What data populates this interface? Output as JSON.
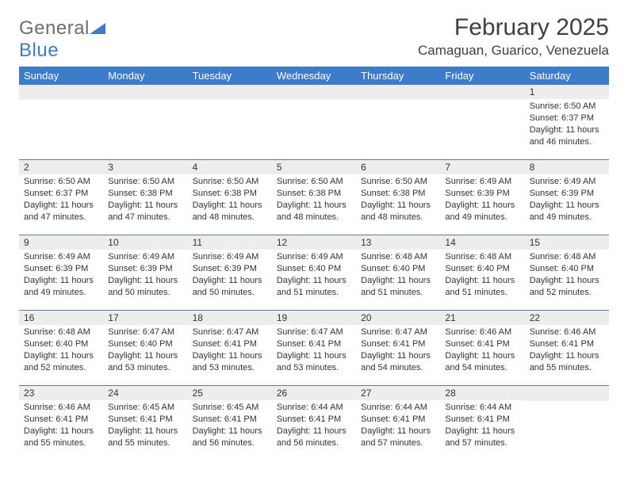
{
  "logo": {
    "word1": "General",
    "word2": "Blue"
  },
  "title": "February 2025",
  "location": "Camaguan, Guarico, Venezuela",
  "colors": {
    "header_bg": "#3d7cc9",
    "header_fg": "#ffffff",
    "daynum_bg": "#ededed",
    "rule": "#5a7da5",
    "text": "#333333",
    "logo_gray": "#6d6d6d",
    "logo_blue": "#3d7cc9"
  },
  "weekdays": [
    "Sunday",
    "Monday",
    "Tuesday",
    "Wednesday",
    "Thursday",
    "Friday",
    "Saturday"
  ],
  "weeks": [
    [
      null,
      null,
      null,
      null,
      null,
      null,
      {
        "d": "1",
        "sr": "6:50 AM",
        "ss": "6:37 PM",
        "dl": "11 hours and 46 minutes."
      }
    ],
    [
      {
        "d": "2",
        "sr": "6:50 AM",
        "ss": "6:37 PM",
        "dl": "11 hours and 47 minutes."
      },
      {
        "d": "3",
        "sr": "6:50 AM",
        "ss": "6:38 PM",
        "dl": "11 hours and 47 minutes."
      },
      {
        "d": "4",
        "sr": "6:50 AM",
        "ss": "6:38 PM",
        "dl": "11 hours and 48 minutes."
      },
      {
        "d": "5",
        "sr": "6:50 AM",
        "ss": "6:38 PM",
        "dl": "11 hours and 48 minutes."
      },
      {
        "d": "6",
        "sr": "6:50 AM",
        "ss": "6:38 PM",
        "dl": "11 hours and 48 minutes."
      },
      {
        "d": "7",
        "sr": "6:49 AM",
        "ss": "6:39 PM",
        "dl": "11 hours and 49 minutes."
      },
      {
        "d": "8",
        "sr": "6:49 AM",
        "ss": "6:39 PM",
        "dl": "11 hours and 49 minutes."
      }
    ],
    [
      {
        "d": "9",
        "sr": "6:49 AM",
        "ss": "6:39 PM",
        "dl": "11 hours and 49 minutes."
      },
      {
        "d": "10",
        "sr": "6:49 AM",
        "ss": "6:39 PM",
        "dl": "11 hours and 50 minutes."
      },
      {
        "d": "11",
        "sr": "6:49 AM",
        "ss": "6:39 PM",
        "dl": "11 hours and 50 minutes."
      },
      {
        "d": "12",
        "sr": "6:49 AM",
        "ss": "6:40 PM",
        "dl": "11 hours and 51 minutes."
      },
      {
        "d": "13",
        "sr": "6:48 AM",
        "ss": "6:40 PM",
        "dl": "11 hours and 51 minutes."
      },
      {
        "d": "14",
        "sr": "6:48 AM",
        "ss": "6:40 PM",
        "dl": "11 hours and 51 minutes."
      },
      {
        "d": "15",
        "sr": "6:48 AM",
        "ss": "6:40 PM",
        "dl": "11 hours and 52 minutes."
      }
    ],
    [
      {
        "d": "16",
        "sr": "6:48 AM",
        "ss": "6:40 PM",
        "dl": "11 hours and 52 minutes."
      },
      {
        "d": "17",
        "sr": "6:47 AM",
        "ss": "6:40 PM",
        "dl": "11 hours and 53 minutes."
      },
      {
        "d": "18",
        "sr": "6:47 AM",
        "ss": "6:41 PM",
        "dl": "11 hours and 53 minutes."
      },
      {
        "d": "19",
        "sr": "6:47 AM",
        "ss": "6:41 PM",
        "dl": "11 hours and 53 minutes."
      },
      {
        "d": "20",
        "sr": "6:47 AM",
        "ss": "6:41 PM",
        "dl": "11 hours and 54 minutes."
      },
      {
        "d": "21",
        "sr": "6:46 AM",
        "ss": "6:41 PM",
        "dl": "11 hours and 54 minutes."
      },
      {
        "d": "22",
        "sr": "6:46 AM",
        "ss": "6:41 PM",
        "dl": "11 hours and 55 minutes."
      }
    ],
    [
      {
        "d": "23",
        "sr": "6:46 AM",
        "ss": "6:41 PM",
        "dl": "11 hours and 55 minutes."
      },
      {
        "d": "24",
        "sr": "6:45 AM",
        "ss": "6:41 PM",
        "dl": "11 hours and 55 minutes."
      },
      {
        "d": "25",
        "sr": "6:45 AM",
        "ss": "6:41 PM",
        "dl": "11 hours and 56 minutes."
      },
      {
        "d": "26",
        "sr": "6:44 AM",
        "ss": "6:41 PM",
        "dl": "11 hours and 56 minutes."
      },
      {
        "d": "27",
        "sr": "6:44 AM",
        "ss": "6:41 PM",
        "dl": "11 hours and 57 minutes."
      },
      {
        "d": "28",
        "sr": "6:44 AM",
        "ss": "6:41 PM",
        "dl": "11 hours and 57 minutes."
      },
      null
    ]
  ],
  "labels": {
    "sunrise": "Sunrise:",
    "sunset": "Sunset:",
    "daylight": "Daylight:"
  }
}
